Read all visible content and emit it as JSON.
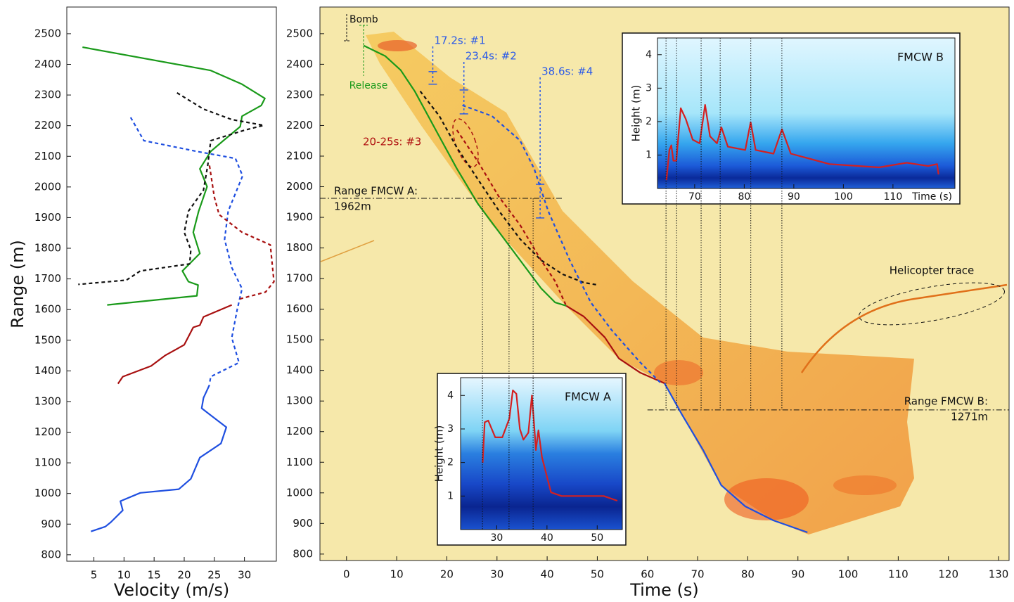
{
  "chart_data": [
    {
      "type": "line",
      "xlabel": "Velocity (m/s)",
      "ylabel": "Range (m)",
      "xlim": [
        0.5,
        35.3
      ],
      "ylim": [
        779,
        2587
      ],
      "xticks": [
        5,
        10,
        15,
        20,
        25,
        30
      ],
      "yticks": [
        800,
        900,
        1000,
        1100,
        1200,
        1300,
        1400,
        1500,
        1600,
        1700,
        1800,
        1900,
        2000,
        2100,
        2200,
        2300,
        2400,
        2500
      ],
      "series": [
        {
          "color": "#1a9a1a",
          "dashed": false,
          "x": [
            3.1,
            24.4,
            29.6,
            33.4,
            32.8,
            29.6,
            29.3,
            26.5,
            24.4,
            22.6,
            23.8,
            22.4,
            21.5,
            22.6,
            19.7,
            20.7,
            22.3,
            22.1,
            7.2
          ],
          "values": [
            2456,
            2380,
            2335,
            2289,
            2266,
            2231,
            2197,
            2151,
            2116,
            2059,
            2001,
            1921,
            1852,
            1783,
            1726,
            1691,
            1680,
            1645,
            1615
          ]
        },
        {
          "color": "#111111",
          "dashed": true,
          "x": [
            18.8,
            23.2,
            27.9,
            33.2,
            30,
            24.4,
            23.9,
            23.2,
            20.7,
            20,
            21.1,
            20.9,
            12.7,
            10.4,
            2.4
          ],
          "values": [
            2307,
            2254,
            2220,
            2201,
            2185,
            2151,
            2070,
            1990,
            1921,
            1852,
            1795,
            1749,
            1726,
            1696,
            1682
          ]
        },
        {
          "color": "#1f4fe0",
          "dashed": true,
          "x": [
            11.1,
            13.3,
            22.1,
            28.5,
            29.7,
            27.3,
            26.7,
            27.9,
            29.6,
            28.8,
            27.9,
            29.1,
            24.4,
            24.2
          ],
          "values": [
            2227,
            2151,
            2116,
            2093,
            2036,
            1921,
            1829,
            1737,
            1668,
            1600,
            1508,
            1427,
            1381,
            1358
          ]
        },
        {
          "color": "#a81010",
          "dashed": true,
          "x": [
            24.2,
            25,
            25.8,
            29.6,
            34.3,
            34.9,
            33.5,
            29.1
          ],
          "values": [
            2070,
            1967,
            1910,
            1852,
            1811,
            1691,
            1657,
            1634
          ]
        },
        {
          "color": "#a81010",
          "dashed": false,
          "x": [
            27.9,
            23.2,
            22.6,
            21.5,
            20,
            16.8,
            14.5,
            9.8,
            9
          ],
          "values": [
            1615,
            1576,
            1549,
            1542,
            1485,
            1450,
            1416,
            1381,
            1358
          ]
        },
        {
          "color": "#1f4fe0",
          "dashed": false,
          "x": [
            24.2,
            23.2,
            22.9,
            24.4,
            27,
            26.1,
            22.6,
            21.1,
            19.1,
            12.7,
            9.4,
            9.8,
            7.8,
            6.9,
            4.5
          ],
          "values": [
            1354,
            1312,
            1278,
            1255,
            1216,
            1163,
            1117,
            1048,
            1014,
            1002,
            975,
            945,
            906,
            892,
            876
          ]
        }
      ]
    },
    {
      "type": "line",
      "xlabel": "Time (s)",
      "xlim": [
        -5.3,
        132.1
      ],
      "ylim": [
        779,
        2587
      ],
      "xticks": [
        0,
        10,
        20,
        30,
        40,
        50,
        60,
        70,
        80,
        90,
        100,
        110,
        120,
        130
      ],
      "yticks": [
        800,
        900,
        1000,
        1100,
        1200,
        1300,
        1400,
        1500,
        1600,
        1700,
        1800,
        1900,
        2000,
        2100,
        2200,
        2300,
        2400,
        2500
      ],
      "series": [
        {
          "color": "#1a9a1a",
          "dashed": false,
          "x": [
            3.4,
            7.7,
            10.8,
            13.6,
            17.8,
            22,
            26.2,
            30.4,
            34.6,
            38.8,
            41.6,
            43.8
          ],
          "values": [
            2461,
            2427,
            2381,
            2312,
            2185,
            2059,
            1944,
            1852,
            1760,
            1668,
            1622,
            1611
          ]
        },
        {
          "color": "#a81010",
          "dashed": false,
          "x": [
            43.8,
            47.3,
            51.5,
            54.3,
            58.5,
            63.4
          ],
          "values": [
            1611,
            1576,
            1508,
            1439,
            1393,
            1358
          ]
        },
        {
          "color": "#1f4fe0",
          "dashed": false,
          "x": [
            63.4,
            66.9,
            71.1,
            74.7,
            79.5,
            85.1,
            91.9
          ],
          "values": [
            1358,
            1255,
            1140,
            1025,
            956,
            910,
            871
          ]
        },
        {
          "color": "#111111",
          "dashed": true,
          "x": [
            14.7,
            18.5,
            22,
            26.2,
            30.4,
            34.6,
            38.8,
            43.1,
            47.3,
            49.8
          ],
          "values": [
            2312,
            2231,
            2128,
            2024,
            1921,
            1829,
            1760,
            1714,
            1687,
            1680
          ]
        },
        {
          "color": "#1f4fe0",
          "dashed": true,
          "x": [
            23.1,
            29,
            34.6,
            37.4,
            40.2,
            44.5,
            48.7,
            52.9,
            58.5,
            62.7
          ],
          "values": [
            2266,
            2231,
            2151,
            2059,
            1921,
            1760,
            1622,
            1531,
            1427,
            1358
          ]
        },
        {
          "color": "#a81010",
          "dashed": true,
          "x": [
            22,
            26.2,
            30.4,
            34.6,
            38.8,
            41.6,
            43.8
          ],
          "values": [
            2185,
            2082,
            1967,
            1875,
            1760,
            1691,
            1611
          ]
        }
      ],
      "markers": [
        {
          "value": 17.2,
          "label": "17.2s: #1",
          "range": [
            2335,
            2376
          ]
        },
        {
          "value": 23.4,
          "label": "23.4s: #2",
          "range": [
            2238,
            2316
          ]
        },
        {
          "value": 38.6,
          "label": "38.6s: #4",
          "range": [
            1898,
            2008
          ]
        }
      ],
      "hlines": [
        {
          "value": 1962,
          "label": [
            "Range FMCW A:",
            "1962m"
          ],
          "span": [
            -5.3,
            43
          ]
        },
        {
          "value": 1271,
          "label": [
            "Range FMCW B:",
            "1271m"
          ],
          "span": [
            60,
            132.1
          ]
        }
      ],
      "fmcw_a_events": [
        27.1,
        32.4,
        37.2
      ],
      "fmcw_b_events": [
        63.7,
        65.8,
        70.7,
        74.5,
        80.6,
        86.8
      ],
      "annotations": {
        "bomb": "Bomb",
        "release": "Release",
        "avalanche_3": "20-25s: #3",
        "helicopter": "Helicopter trace"
      }
    },
    {
      "type": "line",
      "title": "FMCW A",
      "ylabel": "Height (m)",
      "xlim": [
        22.8,
        55
      ],
      "ylim": [
        0,
        4.53
      ],
      "xticks": [
        30,
        40,
        50
      ],
      "yticks": [
        1,
        2,
        3,
        4
      ],
      "series": [
        {
          "color": "#d42020",
          "dashed": false,
          "x": [
            27.2,
            27.6,
            28.3,
            29.7,
            31.1,
            32.5,
            33.2,
            33.9,
            34.6,
            35.3,
            36.3,
            37,
            37.4,
            37.8,
            38.3,
            39,
            40.8,
            42.9,
            47.1,
            51.3,
            54
          ],
          "values": [
            1.99,
            3.2,
            3.25,
            2.75,
            2.75,
            3.31,
            4.15,
            4.05,
            3.0,
            2.68,
            2.89,
            4.0,
            3.21,
            2.37,
            2.96,
            2.16,
            1.11,
            1.0,
            1.0,
            1.0,
            0.86
          ]
        }
      ]
    },
    {
      "type": "line",
      "title": "FMCW B",
      "xlabel": "Time (s)",
      "ylabel": "Height (m)",
      "xlim": [
        62.5,
        122.5
      ],
      "ylim": [
        0,
        4.5
      ],
      "xticks": [
        70,
        80,
        90,
        100,
        110
      ],
      "yticks": [
        1,
        2,
        3,
        4
      ],
      "series": [
        {
          "color": "#d42020",
          "dashed": false,
          "x": [
            64.3,
            64.9,
            65.3,
            65.7,
            66.3,
            67.2,
            68.2,
            69.6,
            71,
            72.1,
            73.1,
            74.5,
            75.4,
            76.7,
            80.2,
            81.3,
            82.3,
            85.9,
            87.6,
            89.4,
            97.2,
            107.2,
            112.8,
            117.1,
            118.9,
            119.2
          ],
          "values": [
            0.25,
            1.15,
            1.29,
            0.83,
            0.83,
            2.4,
            2.08,
            1.46,
            1.35,
            2.5,
            1.56,
            1.35,
            1.83,
            1.25,
            1.15,
            1.98,
            1.15,
            1.04,
            1.77,
            1.04,
            0.73,
            0.63,
            0.77,
            0.67,
            0.73,
            0.42
          ]
        }
      ]
    }
  ]
}
